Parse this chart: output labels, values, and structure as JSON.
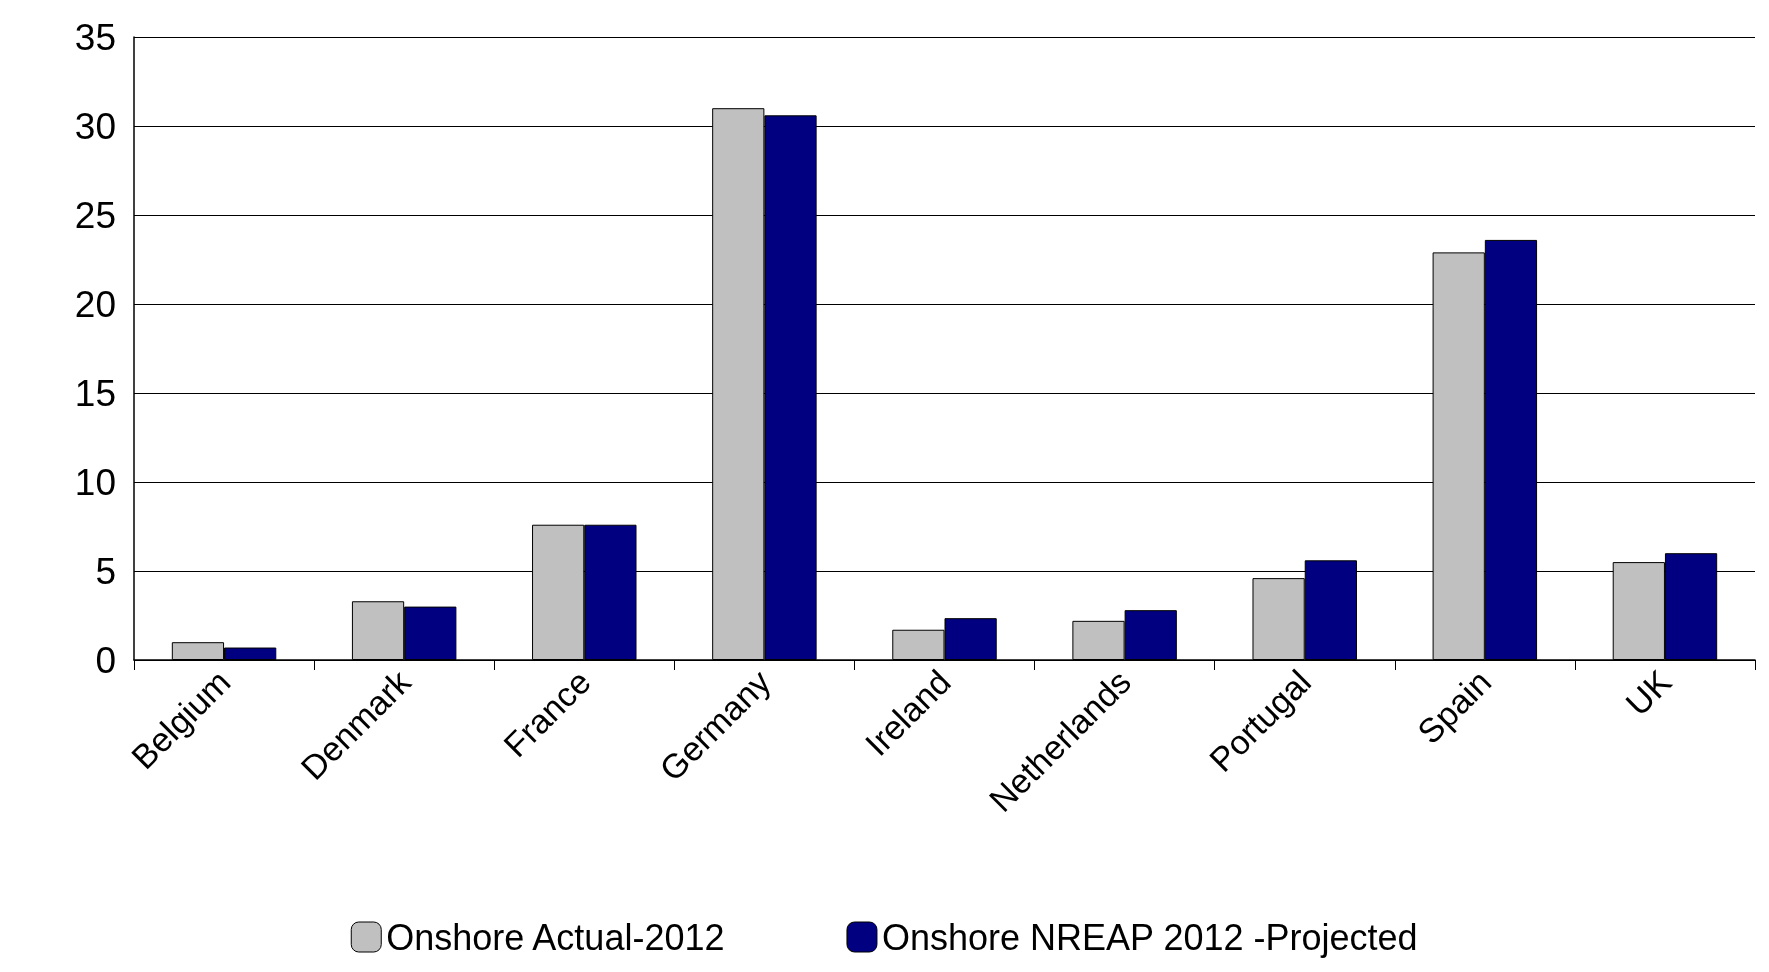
{
  "chart_data": {
    "type": "bar",
    "categories": [
      "Belgium",
      "Denmark",
      "France",
      "Germany",
      "Ireland",
      "Netherlands",
      "Portugal",
      "Spain",
      "UK"
    ],
    "series": [
      {
        "name": "Onshore Actual-2012",
        "color": "#c0c0c0",
        "values": [
          1.0,
          3.3,
          7.6,
          31.0,
          1.7,
          2.2,
          4.6,
          22.9,
          5.5
        ]
      },
      {
        "name": "Onshore NREAP 2012 -Projected",
        "color": "#000080",
        "values": [
          0.7,
          3.0,
          7.6,
          30.6,
          2.35,
          2.8,
          5.6,
          23.6,
          6.0
        ]
      }
    ],
    "ylim": [
      0,
      35
    ],
    "yticks": [
      0,
      5,
      10,
      15,
      20,
      25,
      30,
      35
    ],
    "grid": "y",
    "legend": "bottom"
  }
}
